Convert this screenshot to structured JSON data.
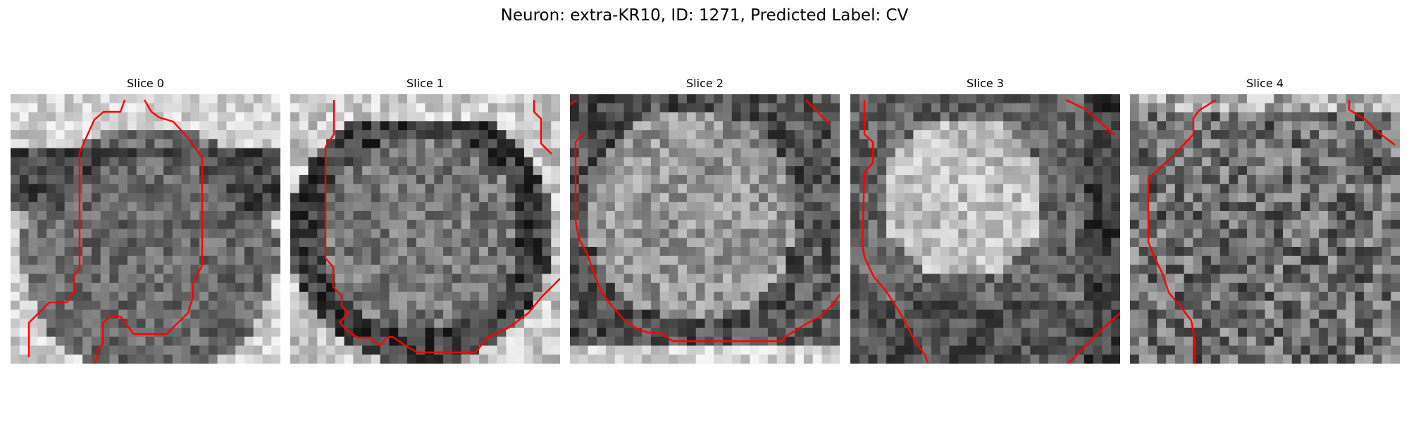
{
  "figure": {
    "title": "Neuron: extra-KR10, ID: 1271, Predicted Label: CV",
    "accent_contour_color": "#ff0000"
  },
  "panels": [
    {
      "title": "Slice 0",
      "seed": 11
    },
    {
      "title": "Slice 1",
      "seed": 23
    },
    {
      "title": "Slice 2",
      "seed": 37
    },
    {
      "title": "Slice 3",
      "seed": 49
    },
    {
      "title": "Slice 4",
      "seed": 61
    }
  ]
}
